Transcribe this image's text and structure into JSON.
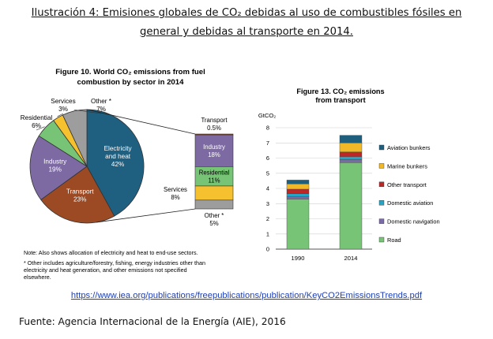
{
  "caption": {
    "line1": "Ilustración 4: Emisiones globales de CO₂ debidas al uso de combustibles fósiles en",
    "line2": "general y debidas al transporte en 2014."
  },
  "link_text": "https://www.iea.org/publications/freepublications/publication/KeyCO2EmissionsTrends.pdf",
  "source_text": "Fuente: Agencia Internacional de la Energía (AIE), 2016",
  "colors": {
    "electricity": "#1f5f80",
    "transport": "#9b4a24",
    "industry": "#7d6aa3",
    "residential": "#77c477",
    "services": "#f5c12e",
    "other": "#9d9d9d",
    "aviation": "#1e5f7e",
    "marine": "#f1b927",
    "other_transport": "#bf2727",
    "domestic_aviation": "#23a6c6",
    "domestic_navigation": "#7a6aa6",
    "road": "#77c477"
  },
  "chart_data": [
    {
      "type": "pie",
      "title_line1": "Figure 10. World CO₂ emissions from fuel",
      "title_line2": "combustion by sector in 2014",
      "slices": [
        {
          "name": "Electricity and heat",
          "label_line1": "Electricity",
          "label_line2": "and heat",
          "value": 42,
          "value_label": "42%",
          "color_key": "electricity"
        },
        {
          "name": "Transport",
          "label_line1": "Transport",
          "value": 23,
          "value_label": "23%",
          "color_key": "transport"
        },
        {
          "name": "Industry",
          "label_line1": "Industry",
          "value": 19,
          "value_label": "19%",
          "color_key": "industry"
        },
        {
          "name": "Residential",
          "label_line1": "Residential",
          "value": 6,
          "value_label": "6%",
          "color_key": "residential"
        },
        {
          "name": "Services",
          "label_line1": "Services",
          "value": 3,
          "value_label": "3%",
          "color_key": "services"
        },
        {
          "name": "Other *",
          "label_line1": "Other *",
          "value": 7,
          "value_label": "7%",
          "color_key": "other"
        }
      ],
      "breakdown": {
        "segments": [
          {
            "name": "Transport",
            "value_label": "0.5%",
            "value": 0.5,
            "color_key": "transport"
          },
          {
            "name": "Industry",
            "value_label": "18%",
            "value": 18,
            "color_key": "industry"
          },
          {
            "name": "Residential",
            "value_label": "11%",
            "value": 11,
            "color_key": "residential"
          },
          {
            "name": "Services",
            "value_label": "8%",
            "value": 8,
            "color_key": "services"
          },
          {
            "name": "Other *",
            "value_label": "5%",
            "value": 5,
            "color_key": "other"
          }
        ]
      },
      "note": "Note: Also shows allocation of electricity and heat to end-use sectors.",
      "footnote_lines": [
        "* Other includes agriculture/forestry, fishing, energy industries other than",
        "electricity and heat generation, and other emissions not specified",
        "elsewhere."
      ]
    },
    {
      "type": "bar",
      "stacked": true,
      "title_line1": "Figure 13. CO₂ emissions",
      "title_line2": "from transport",
      "ylabel": "GtCO₂",
      "ylim": [
        0,
        8
      ],
      "yticks": [
        0,
        1,
        2,
        3,
        4,
        5,
        6,
        7,
        8
      ],
      "categories": [
        "1990",
        "2014"
      ],
      "series": [
        {
          "name": "Road",
          "color_key": "road",
          "values": [
            3.3,
            5.7
          ]
        },
        {
          "name": "Domestic navigation",
          "color_key": "domestic_navigation",
          "values": [
            0.15,
            0.2
          ]
        },
        {
          "name": "Domestic aviation",
          "color_key": "domestic_aviation",
          "values": [
            0.2,
            0.2
          ]
        },
        {
          "name": "Other transport",
          "color_key": "other_transport",
          "values": [
            0.3,
            0.3
          ]
        },
        {
          "name": "Marine bunkers",
          "color_key": "marine",
          "values": [
            0.35,
            0.6
          ]
        },
        {
          "name": "Aviation bunkers",
          "color_key": "aviation",
          "values": [
            0.25,
            0.5
          ]
        }
      ],
      "legend": [
        {
          "label": "Aviation bunkers",
          "color_key": "aviation"
        },
        {
          "label": "Marine bunkers",
          "color_key": "marine"
        },
        {
          "label": "Other transport",
          "color_key": "other_transport"
        },
        {
          "label": "Domestic aviation",
          "color_key": "domestic_aviation"
        },
        {
          "label": "Domestic navigation",
          "color_key": "domestic_navigation"
        },
        {
          "label": "Road",
          "color_key": "road"
        }
      ]
    }
  ]
}
